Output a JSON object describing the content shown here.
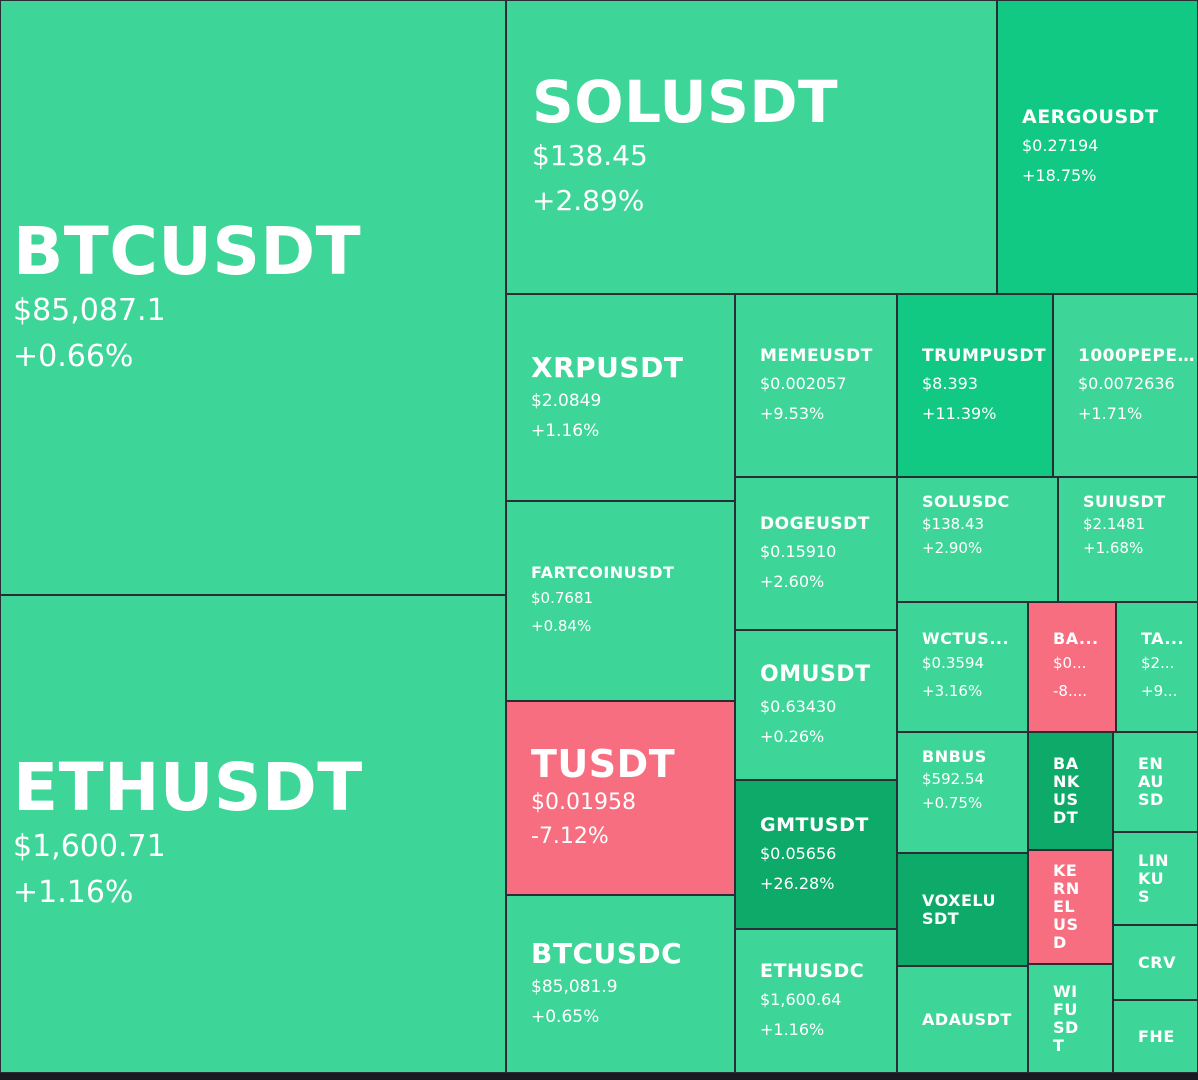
{
  "chart_data": {
    "type": "heatmap",
    "colors": {
      "up": "#3ed598",
      "strong_up": "#12c983",
      "strongest_up": "#0daa6a",
      "down": "#f66e80"
    },
    "tiles": [
      {
        "id": "btcusdt",
        "symbol": "BTCUSDT",
        "price": "$85,087.1",
        "change": "+0.66%",
        "change_pct": 0.66,
        "color": "#3ed598",
        "size": "s-xl"
      },
      {
        "id": "ethusdt",
        "symbol": "ETHUSDT",
        "price": "$1,600.71",
        "change": "+1.16%",
        "change_pct": 1.16,
        "color": "#3ed598",
        "size": "s-xl"
      },
      {
        "id": "solusdt",
        "symbol": "SOLUSDT",
        "price": "$138.45",
        "change": "+2.89%",
        "change_pct": 2.89,
        "color": "#3ed598",
        "size": "s-l"
      },
      {
        "id": "aergousdt",
        "symbol": "AERGOUSDT",
        "price": "$0.27194",
        "change": "+18.75%",
        "change_pct": 18.75,
        "color": "#12c983",
        "size": "s-s"
      },
      {
        "id": "xrpusdt",
        "symbol": "XRPUSDT",
        "price": "$2.0849",
        "change": "+1.16%",
        "change_pct": 1.16,
        "color": "#3ed598",
        "size": "s-m"
      },
      {
        "id": "memeusdt",
        "symbol": "MEMEUSDT",
        "price": "$0.002057",
        "change": "+9.53%",
        "change_pct": 9.53,
        "color": "#3ed598",
        "size": "s-xs"
      },
      {
        "id": "trumpusdt",
        "symbol": "TRUMPUSDT",
        "price": "$8.393",
        "change": "+11.39%",
        "change_pct": 11.39,
        "color": "#12c983",
        "size": "s-xs"
      },
      {
        "id": "1000pepe",
        "symbol": "1000PEPE...",
        "price": "$0.0072636",
        "change": "+1.71%",
        "change_pct": 1.71,
        "color": "#3ed598",
        "size": "s-xs"
      },
      {
        "id": "fartcoinusdt",
        "symbol": "FARTCOINUSDT",
        "price": "$0.7681",
        "change": "+0.84%",
        "change_pct": 0.84,
        "color": "#3ed598",
        "size": "s-xxs"
      },
      {
        "id": "dogeusdt",
        "symbol": "DOGEUSDT",
        "price": "$0.15910",
        "change": "+2.60%",
        "change_pct": 2.6,
        "color": "#3ed598",
        "size": "s-xs"
      },
      {
        "id": "solusdc",
        "symbol": "SOLUSDC",
        "price": "$138.43",
        "change": "+2.90%",
        "change_pct": 2.9,
        "color": "#3ed598",
        "size": "s-clip"
      },
      {
        "id": "suiusdt",
        "symbol": "SUIUSDT",
        "price": "$2.1481",
        "change": "+1.68%",
        "change_pct": 1.68,
        "color": "#3ed598",
        "size": "s-clip"
      },
      {
        "id": "wctus",
        "symbol": "WCTUS...",
        "price": "$0.3594",
        "change": "+3.16%",
        "change_pct": 3.16,
        "color": "#3ed598",
        "size": "s-tiny"
      },
      {
        "id": "ba1",
        "symbol": "BA...",
        "price": "$0...",
        "change": "-8....",
        "change_pct": -8,
        "color": "#f66e80",
        "size": "s-tiny"
      },
      {
        "id": "ta",
        "symbol": "TA...",
        "price": "$2...",
        "change": "+9...",
        "change_pct": 9,
        "color": "#3ed598",
        "size": "s-tiny"
      },
      {
        "id": "omusdt",
        "symbol": "OMUSDT",
        "price": "$0.63430",
        "change": "+0.26%",
        "change_pct": 0.26,
        "color": "#3ed598",
        "size": "s-m2"
      },
      {
        "id": "tusdt",
        "symbol": "TUSDT",
        "price": "$0.01958",
        "change": "-7.12%",
        "change_pct": -7.12,
        "color": "#f66e80",
        "size": "s-tl"
      },
      {
        "id": "bnbus",
        "symbol": "BNBUS",
        "price": "$592.54",
        "change": "+0.75%",
        "change_pct": 0.75,
        "color": "#3ed598",
        "size": "s-clip"
      },
      {
        "id": "bankusdt",
        "symbol": "BANKUSDT",
        "price": "",
        "change": "",
        "change_pct": null,
        "color": "#0daa6a",
        "size": "s-nano"
      },
      {
        "id": "enausd",
        "symbol": "ENAUSD",
        "price": "",
        "change": "",
        "change_pct": null,
        "color": "#3ed598",
        "size": "s-nano"
      },
      {
        "id": "gmtusdt",
        "symbol": "GMTUSDT",
        "price": "$0.05656",
        "change": "+26.28%",
        "change_pct": 26.28,
        "color": "#0daa6a",
        "size": "s-s"
      },
      {
        "id": "voxelusdt",
        "symbol": "VOXELUSDT",
        "price": "",
        "change": "",
        "change_pct": null,
        "color": "#0daa6a",
        "size": "s-nano"
      },
      {
        "id": "kernelusd",
        "symbol": "KERNELUSD",
        "price": "",
        "change": "",
        "change_pct": null,
        "color": "#f66e80",
        "size": "s-nano"
      },
      {
        "id": "linkus",
        "symbol": "LINKUS",
        "price": "",
        "change": "",
        "change_pct": null,
        "color": "#3ed598",
        "size": "s-nano"
      },
      {
        "id": "btcusdc",
        "symbol": "BTCUSDC",
        "price": "$85,081.9",
        "change": "+0.65%",
        "change_pct": 0.65,
        "color": "#3ed598",
        "size": "s-m"
      },
      {
        "id": "ethusdc",
        "symbol": "ETHUSDC",
        "price": "$1,600.64",
        "change": "+1.16%",
        "change_pct": 1.16,
        "color": "#3ed598",
        "size": "s-s"
      },
      {
        "id": "crv",
        "symbol": "CRV",
        "price": "",
        "change": "",
        "change_pct": null,
        "color": "#3ed598",
        "size": "s-nano"
      },
      {
        "id": "adausdt",
        "symbol": "ADAUSDT",
        "price": "",
        "change": "",
        "change_pct": null,
        "color": "#3ed598",
        "size": "s-nano"
      },
      {
        "id": "wifusdt",
        "symbol": "WIFUSDT",
        "price": "",
        "change": "",
        "change_pct": null,
        "color": "#3ed598",
        "size": "s-nano"
      },
      {
        "id": "fhe",
        "symbol": "FHE",
        "price": "",
        "change": "",
        "change_pct": null,
        "color": "#3ed598",
        "size": "s-nano"
      }
    ]
  }
}
